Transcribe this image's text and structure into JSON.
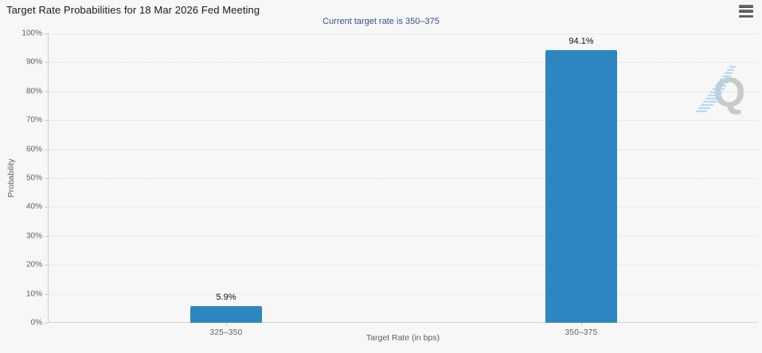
{
  "header": {
    "title": "Target Rate Probabilities for 18 Mar 2026 Fed Meeting",
    "menu_icon": "hamburger-menu-icon",
    "menu_tooltip": "Chart context menu"
  },
  "chart": {
    "subtitle": "Current target rate is 350–375",
    "watermark_letter": "Q",
    "colors": {
      "background": "#f7f7f7",
      "bar": "#2e86c1",
      "subtitle_text": "#35508f",
      "title_text": "#1a1a1a",
      "axis_label_text": "#606060",
      "gridline": "#dcdcdc",
      "axis_line": "#cccccc",
      "watermark_gray": "#c9c9c9",
      "watermark_blue": "#aed9f2"
    }
  },
  "chart_data": {
    "type": "bar",
    "title": "Target Rate Probabilities for 18 Mar 2026 Fed Meeting",
    "subtitle": "Current target rate is 350–375",
    "categories": [
      "325–350",
      "350–375"
    ],
    "values": [
      5.9,
      94.1
    ],
    "data_labels": [
      "5.9%",
      "94.1%"
    ],
    "xlabel": "Target Rate (in bps)",
    "ylabel": "Probability",
    "ylim": [
      0,
      100
    ],
    "ytick_step": 10,
    "ytick_labels": [
      "0%",
      "10%",
      "20%",
      "30%",
      "40%",
      "50%",
      "60%",
      "70%",
      "80%",
      "90%",
      "100%"
    ],
    "grid": "dotted-horizontal",
    "legend": "none",
    "bar_color": "#2e86c1"
  }
}
